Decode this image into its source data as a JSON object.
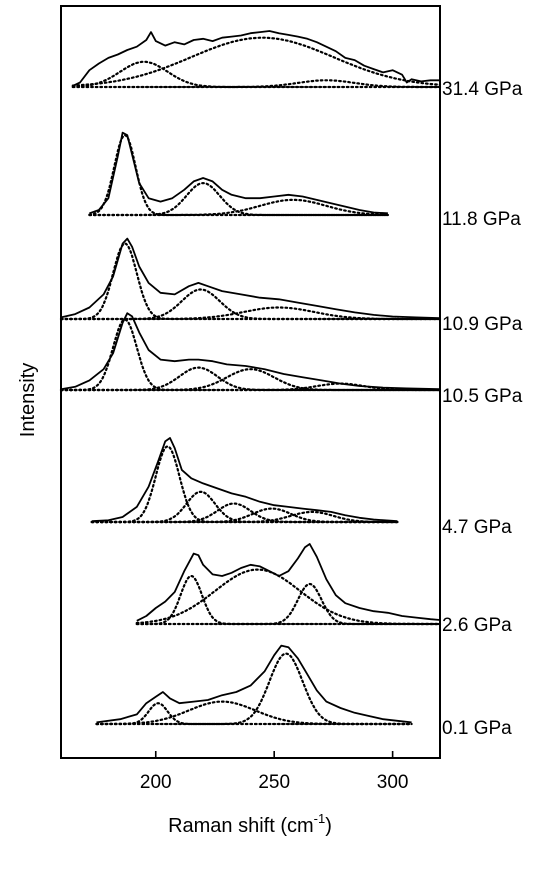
{
  "chart_data": {
    "type": "line",
    "xlabel": "Raman shift (cm",
    "xlabel_sup": "-1",
    "xlabel_close": ")",
    "ylabel": "Intensity",
    "xlim": [
      160,
      320
    ],
    "x_ticks": [
      200,
      250,
      300
    ],
    "grid": false,
    "spectra": [
      {
        "label": "31.4 GPa",
        "x_range": [
          165,
          320
        ],
        "measured": [
          [
            165,
            0.02
          ],
          [
            168,
            0.08
          ],
          [
            172,
            0.3
          ],
          [
            176,
            0.42
          ],
          [
            180,
            0.52
          ],
          [
            184,
            0.58
          ],
          [
            188,
            0.66
          ],
          [
            192,
            0.72
          ],
          [
            196,
            0.84
          ],
          [
            198,
            0.98
          ],
          [
            200,
            0.82
          ],
          [
            204,
            0.74
          ],
          [
            208,
            0.8
          ],
          [
            212,
            0.76
          ],
          [
            216,
            0.84
          ],
          [
            220,
            0.86
          ],
          [
            224,
            0.82
          ],
          [
            228,
            0.88
          ],
          [
            232,
            0.9
          ],
          [
            236,
            0.92
          ],
          [
            240,
            0.96
          ],
          [
            244,
            0.98
          ],
          [
            248,
            1.0
          ],
          [
            252,
            0.96
          ],
          [
            256,
            0.93
          ],
          [
            260,
            0.9
          ],
          [
            264,
            0.86
          ],
          [
            268,
            0.8
          ],
          [
            272,
            0.72
          ],
          [
            276,
            0.64
          ],
          [
            280,
            0.52
          ],
          [
            284,
            0.48
          ],
          [
            288,
            0.38
          ],
          [
            292,
            0.32
          ],
          [
            296,
            0.26
          ],
          [
            300,
            0.3
          ],
          [
            304,
            0.22
          ],
          [
            306,
            0.08
          ],
          [
            308,
            0.14
          ],
          [
            312,
            0.1
          ],
          [
            316,
            0.12
          ],
          [
            320,
            0.12
          ]
        ],
        "components": [
          {
            "center": 195,
            "height": 0.45,
            "width": 10
          },
          {
            "center": 245,
            "height": 0.88,
            "width": 30
          },
          {
            "center": 272,
            "height": 0.12,
            "width": 12
          }
        ]
      },
      {
        "label": "11.8 GPa",
        "x_range": [
          172,
          298
        ],
        "measured": [
          [
            172,
            0.02
          ],
          [
            176,
            0.06
          ],
          [
            180,
            0.2
          ],
          [
            184,
            0.7
          ],
          [
            186,
            0.98
          ],
          [
            188,
            0.95
          ],
          [
            190,
            0.72
          ],
          [
            193,
            0.38
          ],
          [
            197,
            0.2
          ],
          [
            202,
            0.16
          ],
          [
            207,
            0.2
          ],
          [
            212,
            0.3
          ],
          [
            216,
            0.4
          ],
          [
            220,
            0.44
          ],
          [
            224,
            0.4
          ],
          [
            228,
            0.3
          ],
          [
            232,
            0.24
          ],
          [
            238,
            0.2
          ],
          [
            244,
            0.2
          ],
          [
            250,
            0.22
          ],
          [
            256,
            0.24
          ],
          [
            262,
            0.22
          ],
          [
            268,
            0.18
          ],
          [
            274,
            0.14
          ],
          [
            280,
            0.1
          ],
          [
            286,
            0.06
          ],
          [
            292,
            0.03
          ],
          [
            298,
            0.02
          ]
        ],
        "components": [
          {
            "center": 187,
            "height": 0.95,
            "width": 4.5
          },
          {
            "center": 220,
            "height": 0.38,
            "width": 7
          },
          {
            "center": 258,
            "height": 0.18,
            "width": 14
          }
        ]
      },
      {
        "label": "10.9 GPa",
        "x_range": [
          160,
          320
        ],
        "measured": [
          [
            160,
            0.02
          ],
          [
            166,
            0.06
          ],
          [
            172,
            0.14
          ],
          [
            178,
            0.3
          ],
          [
            182,
            0.52
          ],
          [
            186,
            0.92
          ],
          [
            188,
            0.98
          ],
          [
            190,
            0.88
          ],
          [
            193,
            0.64
          ],
          [
            197,
            0.44
          ],
          [
            202,
            0.32
          ],
          [
            208,
            0.3
          ],
          [
            214,
            0.4
          ],
          [
            218,
            0.44
          ],
          [
            222,
            0.4
          ],
          [
            228,
            0.34
          ],
          [
            236,
            0.3
          ],
          [
            244,
            0.26
          ],
          [
            252,
            0.24
          ],
          [
            260,
            0.2
          ],
          [
            268,
            0.16
          ],
          [
            276,
            0.12
          ],
          [
            284,
            0.08
          ],
          [
            292,
            0.05
          ],
          [
            300,
            0.03
          ],
          [
            310,
            0.02
          ],
          [
            320,
            0.01
          ]
        ],
        "components": [
          {
            "center": 187,
            "height": 0.92,
            "width": 5
          },
          {
            "center": 219,
            "height": 0.36,
            "width": 8
          },
          {
            "center": 252,
            "height": 0.14,
            "width": 15
          }
        ]
      },
      {
        "label": "10.5 GPa",
        "x_range": [
          160,
          320
        ],
        "measured": [
          [
            160,
            0.01
          ],
          [
            166,
            0.04
          ],
          [
            172,
            0.12
          ],
          [
            178,
            0.26
          ],
          [
            182,
            0.46
          ],
          [
            186,
            0.84
          ],
          [
            188,
            0.96
          ],
          [
            190,
            0.92
          ],
          [
            193,
            0.72
          ],
          [
            197,
            0.5
          ],
          [
            202,
            0.38
          ],
          [
            208,
            0.36
          ],
          [
            214,
            0.38
          ],
          [
            218,
            0.38
          ],
          [
            224,
            0.36
          ],
          [
            230,
            0.32
          ],
          [
            238,
            0.3
          ],
          [
            246,
            0.26
          ],
          [
            254,
            0.2
          ],
          [
            262,
            0.16
          ],
          [
            270,
            0.12
          ],
          [
            278,
            0.08
          ],
          [
            286,
            0.05
          ],
          [
            296,
            0.03
          ],
          [
            306,
            0.02
          ],
          [
            320,
            0.01
          ]
        ],
        "components": [
          {
            "center": 187,
            "height": 0.88,
            "width": 5
          },
          {
            "center": 218,
            "height": 0.28,
            "width": 8
          },
          {
            "center": 240,
            "height": 0.26,
            "width": 10
          },
          {
            "center": 278,
            "height": 0.08,
            "width": 10
          }
        ]
      },
      {
        "label": "4.7 GPa",
        "x_range": [
          173,
          302
        ],
        "measured": [
          [
            173,
            0.01
          ],
          [
            180,
            0.02
          ],
          [
            186,
            0.06
          ],
          [
            192,
            0.18
          ],
          [
            197,
            0.42
          ],
          [
            201,
            0.72
          ],
          [
            204,
            0.96
          ],
          [
            206,
            1.0
          ],
          [
            208,
            0.88
          ],
          [
            211,
            0.62
          ],
          [
            215,
            0.52
          ],
          [
            220,
            0.46
          ],
          [
            226,
            0.4
          ],
          [
            232,
            0.34
          ],
          [
            238,
            0.3
          ],
          [
            244,
            0.24
          ],
          [
            250,
            0.2
          ],
          [
            256,
            0.18
          ],
          [
            262,
            0.16
          ],
          [
            268,
            0.14
          ],
          [
            274,
            0.12
          ],
          [
            280,
            0.08
          ],
          [
            286,
            0.05
          ],
          [
            292,
            0.03
          ],
          [
            302,
            0.01
          ]
        ],
        "components": [
          {
            "center": 205,
            "height": 0.9,
            "width": 5
          },
          {
            "center": 219,
            "height": 0.36,
            "width": 6
          },
          {
            "center": 233,
            "height": 0.22,
            "width": 7
          },
          {
            "center": 249,
            "height": 0.16,
            "width": 8
          },
          {
            "center": 266,
            "height": 0.12,
            "width": 9
          }
        ]
      },
      {
        "label": "2.6 GPa",
        "x_range": [
          192,
          320
        ],
        "measured": [
          [
            192,
            0.04
          ],
          [
            196,
            0.1
          ],
          [
            200,
            0.2
          ],
          [
            204,
            0.28
          ],
          [
            208,
            0.4
          ],
          [
            212,
            0.66
          ],
          [
            216,
            0.88
          ],
          [
            218,
            0.86
          ],
          [
            220,
            0.74
          ],
          [
            224,
            0.62
          ],
          [
            228,
            0.6
          ],
          [
            232,
            0.64
          ],
          [
            236,
            0.7
          ],
          [
            240,
            0.74
          ],
          [
            244,
            0.72
          ],
          [
            248,
            0.66
          ],
          [
            252,
            0.6
          ],
          [
            256,
            0.66
          ],
          [
            260,
            0.82
          ],
          [
            263,
            0.96
          ],
          [
            265,
            1.0
          ],
          [
            268,
            0.84
          ],
          [
            272,
            0.56
          ],
          [
            276,
            0.36
          ],
          [
            280,
            0.26
          ],
          [
            286,
            0.2
          ],
          [
            292,
            0.16
          ],
          [
            298,
            0.14
          ],
          [
            304,
            0.1
          ],
          [
            310,
            0.08
          ],
          [
            316,
            0.06
          ],
          [
            320,
            0.05
          ]
        ],
        "components": [
          {
            "center": 215,
            "height": 0.6,
            "width": 4.5
          },
          {
            "center": 243,
            "height": 0.68,
            "width": 18
          },
          {
            "center": 265,
            "height": 0.5,
            "width": 5
          }
        ]
      },
      {
        "label": "0.1 GPa",
        "x_range": [
          175,
          308
        ],
        "measured": [
          [
            175,
            0.02
          ],
          [
            185,
            0.06
          ],
          [
            192,
            0.12
          ],
          [
            196,
            0.26
          ],
          [
            200,
            0.34
          ],
          [
            203,
            0.4
          ],
          [
            206,
            0.32
          ],
          [
            210,
            0.26
          ],
          [
            216,
            0.28
          ],
          [
            222,
            0.3
          ],
          [
            228,
            0.36
          ],
          [
            234,
            0.4
          ],
          [
            240,
            0.48
          ],
          [
            246,
            0.66
          ],
          [
            250,
            0.86
          ],
          [
            253,
            0.98
          ],
          [
            256,
            0.96
          ],
          [
            260,
            0.82
          ],
          [
            264,
            0.62
          ],
          [
            268,
            0.42
          ],
          [
            272,
            0.28
          ],
          [
            278,
            0.2
          ],
          [
            284,
            0.14
          ],
          [
            290,
            0.1
          ],
          [
            296,
            0.06
          ],
          [
            302,
            0.04
          ],
          [
            308,
            0.02
          ]
        ],
        "components": [
          {
            "center": 201,
            "height": 0.26,
            "width": 4
          },
          {
            "center": 228,
            "height": 0.28,
            "width": 14
          },
          {
            "center": 255,
            "height": 0.88,
            "width": 7
          }
        ]
      }
    ]
  }
}
